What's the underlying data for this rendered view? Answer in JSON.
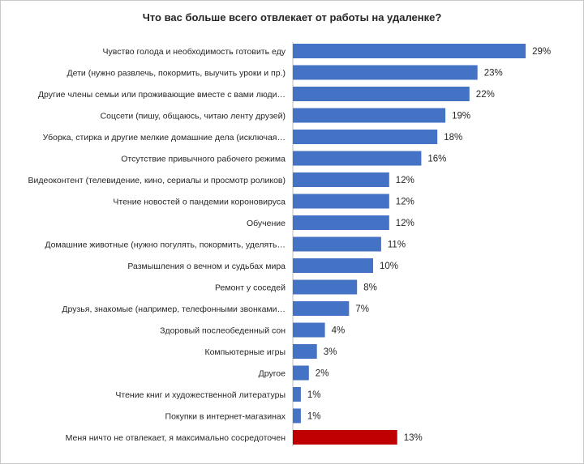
{
  "chart_data": {
    "type": "bar",
    "orientation": "horizontal",
    "title": "Что вас больше всего отвлекает от работы на удаленке?",
    "xlabel": "",
    "ylabel": "",
    "xlim": [
      0,
      30
    ],
    "grid": false,
    "legend": "none",
    "value_suffix": "%",
    "categories": [
      "Чувство голода и необходимость готовить еду",
      "Дети (нужно развлечь, покормить, выучить уроки и пр.)",
      "Другие члены семьи или проживающие вместе с вами люди…",
      "Соцсети (пишу, общаюсь, читаю ленту друзей)",
      "Уборка, стирка и другие мелкие домашние дела (исключая…",
      "Отсутствие привычного рабочего режима",
      "Видеоконтент (телевидение, кино, сериалы и просмотр роликов)",
      "Чтение новостей о пандемии короновируса",
      "Обучение",
      "Домашние животные (нужно погулять, покормить, уделять…",
      "Размышления о вечном и судьбах мира",
      "Ремонт у соседей",
      "Друзья, знакомые (например, телефонными звонками…",
      "Здоровый послеобеденный сон",
      "Компьютерные игры",
      "Другое",
      "Чтение книг и художественной литературы",
      "Покупки в интернет-магазинах",
      "Меня ничто не отвлекает, я максимально сосредоточен"
    ],
    "values": [
      29,
      23,
      22,
      19,
      18,
      16,
      12,
      12,
      12,
      11,
      10,
      8,
      7,
      4,
      3,
      2,
      1,
      1,
      13
    ],
    "colors": {
      "default": "#4472c4",
      "highlight": "#c00000"
    },
    "highlight_index": 18
  }
}
